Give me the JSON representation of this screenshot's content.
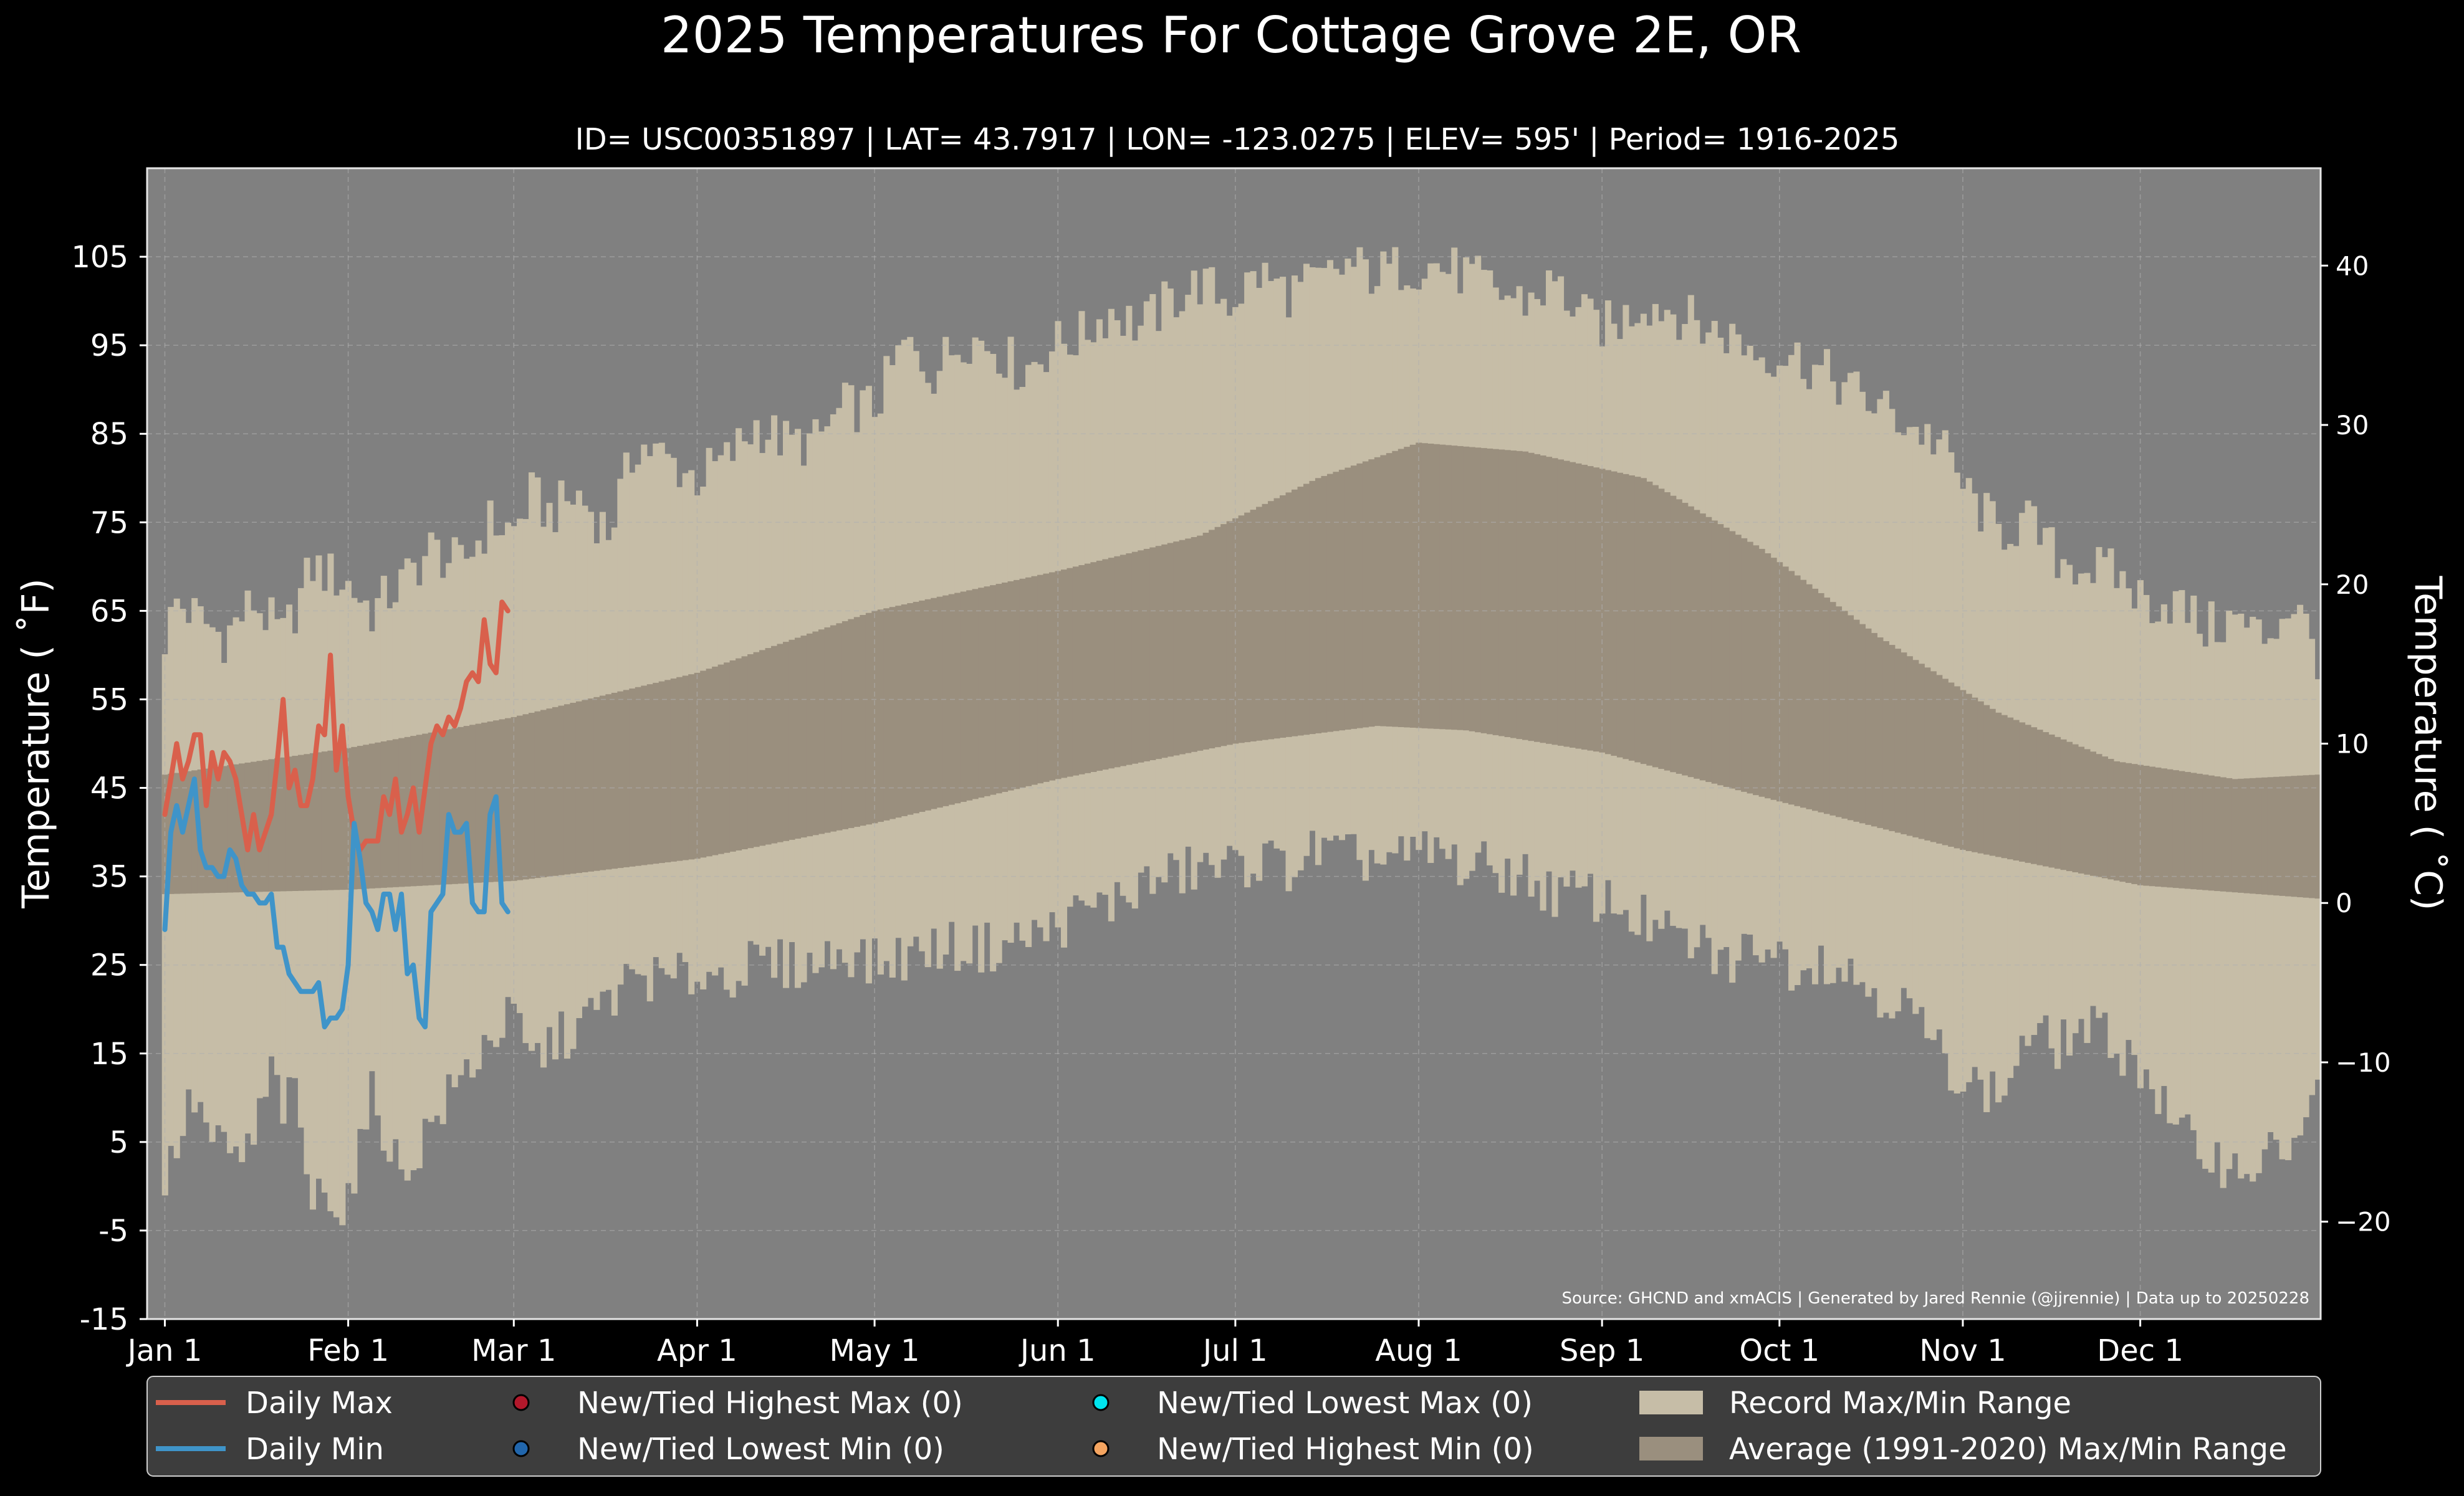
{
  "chart_data": {
    "type": "area",
    "title": "2025 Temperatures For Cottage Grove 2E, OR",
    "subtitle": "ID= USC00351897 | LAT= 43.7917 | LON= -123.0275 | ELEV= 595' | Period= 1916-2025",
    "ylabel": "Temperature ($^\\circ$F)",
    "ylabel_left": "Temperature ( ˚F)",
    "ylabel_right": "Temperature ( ˚C)",
    "source": "Source: GHCND and xmACIS | Generated by Jared Rennie (@jjrennie) | Data up to 20250228",
    "ylim": [
      -15,
      115
    ],
    "xlim_day": [
      -3,
      364.5
    ],
    "y_ticks": [
      {
        "v": -15,
        "label": "-15"
      },
      {
        "v": -5,
        "label": "-5"
      },
      {
        "v": 5,
        "label": "5"
      },
      {
        "v": 15,
        "label": "15"
      },
      {
        "v": 25,
        "label": "25"
      },
      {
        "v": 35,
        "label": "35"
      },
      {
        "v": 45,
        "label": "45"
      },
      {
        "v": 55,
        "label": "55"
      },
      {
        "v": 65,
        "label": "65"
      },
      {
        "v": 75,
        "label": "75"
      },
      {
        "v": 85,
        "label": "85"
      },
      {
        "v": 95,
        "label": "95"
      },
      {
        "v": 105,
        "label": "105"
      }
    ],
    "y_ticks_c": [
      {
        "v": -20,
        "label": "−20"
      },
      {
        "v": -10,
        "label": "−10"
      },
      {
        "v": 0,
        "label": "0"
      },
      {
        "v": 10,
        "label": "10"
      },
      {
        "v": 20,
        "label": "20"
      },
      {
        "v": 30,
        "label": "30"
      },
      {
        "v": 40,
        "label": "40"
      }
    ],
    "x_ticks": [
      {
        "day": 0,
        "label": "Jan 1"
      },
      {
        "day": 31,
        "label": "Feb 1"
      },
      {
        "day": 59,
        "label": "Mar 1"
      },
      {
        "day": 90,
        "label": "Apr 1"
      },
      {
        "day": 120,
        "label": "May 1"
      },
      {
        "day": 151,
        "label": "Jun 1"
      },
      {
        "day": 181,
        "label": "Jul 1"
      },
      {
        "day": 212,
        "label": "Aug 1"
      },
      {
        "day": 243,
        "label": "Sep 1"
      },
      {
        "day": 273,
        "label": "Oct 1"
      },
      {
        "day": 304,
        "label": "Nov 1"
      },
      {
        "day": 334,
        "label": "Dec 1"
      }
    ],
    "grid": true,
    "legend_position": "bottom",
    "legend": [
      {
        "label": "Daily Max",
        "kind": "line",
        "color": "#d9604c"
      },
      {
        "label": "Daily Min",
        "kind": "line",
        "color": "#3f94c9"
      },
      {
        "label": "New/Tied Highest Max (0)",
        "kind": "dot",
        "color": "#b2182b"
      },
      {
        "label": "New/Tied Lowest Min (0)",
        "kind": "dot",
        "color": "#2166ac"
      },
      {
        "label": "New/Tied Lowest Max (0)",
        "kind": "dot",
        "color": "#00e5ee"
      },
      {
        "label": "New/Tied Highest Min (0)",
        "kind": "dot",
        "color": "#f4a460"
      },
      {
        "label": "Record Max/Min Range",
        "kind": "patch",
        "color": "#c6bda7"
      },
      {
        "label": "Average (1991-2020) Max/Min Range",
        "kind": "patch",
        "color": "#9a8f7e"
      }
    ],
    "colors": {
      "background": "#000000",
      "plot_background": "#808080",
      "record_range": "#c6bda7",
      "normal_range": "#9a8f7e",
      "grid": "#b0b0b0",
      "legend_background": "#3d3d3d",
      "text": "#ffffff"
    },
    "normal_max_anchors": [
      [
        0,
        46.5
      ],
      [
        31,
        49.5
      ],
      [
        59,
        53
      ],
      [
        90,
        58
      ],
      [
        120,
        65
      ],
      [
        151,
        69.5
      ],
      [
        175,
        73.5
      ],
      [
        195,
        80
      ],
      [
        212,
        84
      ],
      [
        230,
        83
      ],
      [
        250,
        80
      ],
      [
        270,
        72
      ],
      [
        290,
        62
      ],
      [
        310,
        53.5
      ],
      [
        330,
        48
      ],
      [
        350,
        46
      ],
      [
        364,
        46.5
      ]
    ],
    "normal_min_anchors": [
      [
        0,
        33
      ],
      [
        31,
        33.5
      ],
      [
        59,
        34.5
      ],
      [
        90,
        37
      ],
      [
        120,
        41
      ],
      [
        151,
        46
      ],
      [
        181,
        50
      ],
      [
        205,
        52
      ],
      [
        220,
        51.5
      ],
      [
        243,
        49
      ],
      [
        270,
        44
      ],
      [
        304,
        38
      ],
      [
        334,
        34
      ],
      [
        364,
        32.5
      ]
    ],
    "record_max_anchors": [
      [
        0,
        62
      ],
      [
        2,
        66
      ],
      [
        10,
        62
      ],
      [
        15,
        66
      ],
      [
        20,
        62
      ],
      [
        25,
        70
      ],
      [
        31,
        68
      ],
      [
        35,
        65
      ],
      [
        40,
        68
      ],
      [
        45,
        72
      ],
      [
        50,
        70
      ],
      [
        55,
        75
      ],
      [
        59,
        74
      ],
      [
        62,
        78
      ],
      [
        65,
        76
      ],
      [
        70,
        78
      ],
      [
        75,
        74
      ],
      [
        80,
        84
      ],
      [
        85,
        82
      ],
      [
        90,
        80
      ],
      [
        95,
        82
      ],
      [
        100,
        86
      ],
      [
        105,
        84
      ],
      [
        110,
        84
      ],
      [
        115,
        88
      ],
      [
        120,
        88
      ],
      [
        125,
        95
      ],
      [
        130,
        92
      ],
      [
        135,
        96
      ],
      [
        140,
        95
      ],
      [
        145,
        92
      ],
      [
        150,
        95
      ],
      [
        155,
        96
      ],
      [
        160,
        99
      ],
      [
        165,
        97
      ],
      [
        170,
        100
      ],
      [
        175,
        102
      ],
      [
        180,
        100
      ],
      [
        185,
        103
      ],
      [
        190,
        101
      ],
      [
        195,
        102
      ],
      [
        200,
        104
      ],
      [
        205,
        103
      ],
      [
        210,
        104
      ],
      [
        215,
        104
      ],
      [
        220,
        103
      ],
      [
        225,
        101
      ],
      [
        230,
        100
      ],
      [
        235,
        102
      ],
      [
        240,
        98
      ],
      [
        245,
        97
      ],
      [
        250,
        100
      ],
      [
        255,
        99
      ],
      [
        260,
        97
      ],
      [
        265,
        96
      ],
      [
        270,
        94
      ],
      [
        275,
        94
      ],
      [
        280,
        92
      ],
      [
        285,
        90
      ],
      [
        290,
        88
      ],
      [
        295,
        86
      ],
      [
        300,
        84
      ],
      [
        305,
        78
      ],
      [
        310,
        74
      ],
      [
        315,
        75
      ],
      [
        320,
        71
      ],
      [
        325,
        70
      ],
      [
        330,
        69
      ],
      [
        335,
        66
      ],
      [
        340,
        66
      ],
      [
        345,
        63
      ],
      [
        350,
        64
      ],
      [
        355,
        62
      ],
      [
        360,
        66
      ],
      [
        364,
        60
      ]
    ],
    "record_min_anchors": [
      [
        0,
        0
      ],
      [
        2,
        5
      ],
      [
        5,
        10
      ],
      [
        8,
        5
      ],
      [
        12,
        3
      ],
      [
        15,
        5
      ],
      [
        18,
        13
      ],
      [
        20,
        9
      ],
      [
        22,
        10
      ],
      [
        25,
        -2
      ],
      [
        28,
        0
      ],
      [
        30,
        -3
      ],
      [
        33,
        4
      ],
      [
        35,
        10
      ],
      [
        37,
        7
      ],
      [
        40,
        1
      ],
      [
        45,
        7
      ],
      [
        50,
        12
      ],
      [
        55,
        17
      ],
      [
        59,
        19
      ],
      [
        62,
        14
      ],
      [
        65,
        16
      ],
      [
        70,
        18
      ],
      [
        75,
        21
      ],
      [
        80,
        24
      ],
      [
        85,
        23
      ],
      [
        90,
        24
      ],
      [
        95,
        24
      ],
      [
        100,
        25
      ],
      [
        105,
        25
      ],
      [
        110,
        25
      ],
      [
        115,
        27
      ],
      [
        120,
        25
      ],
      [
        125,
        26
      ],
      [
        130,
        27
      ],
      [
        135,
        27
      ],
      [
        140,
        27
      ],
      [
        145,
        28
      ],
      [
        150,
        29
      ],
      [
        155,
        31
      ],
      [
        160,
        32
      ],
      [
        165,
        34
      ],
      [
        170,
        35
      ],
      [
        175,
        36
      ],
      [
        180,
        36
      ],
      [
        185,
        37
      ],
      [
        190,
        36
      ],
      [
        195,
        38
      ],
      [
        200,
        37
      ],
      [
        205,
        37
      ],
      [
        210,
        37
      ],
      [
        215,
        38
      ],
      [
        220,
        36
      ],
      [
        225,
        36
      ],
      [
        230,
        35
      ],
      [
        235,
        33
      ],
      [
        240,
        33
      ],
      [
        245,
        32
      ],
      [
        250,
        30
      ],
      [
        255,
        28
      ],
      [
        260,
        27
      ],
      [
        265,
        25
      ],
      [
        270,
        28
      ],
      [
        275,
        25
      ],
      [
        280,
        26
      ],
      [
        285,
        24
      ],
      [
        290,
        22
      ],
      [
        295,
        20
      ],
      [
        300,
        15
      ],
      [
        305,
        12
      ],
      [
        310,
        10
      ],
      [
        315,
        17
      ],
      [
        320,
        16
      ],
      [
        325,
        18
      ],
      [
        330,
        16
      ],
      [
        335,
        13
      ],
      [
        340,
        6
      ],
      [
        345,
        4
      ],
      [
        350,
        2
      ],
      [
        355,
        3
      ],
      [
        360,
        5
      ],
      [
        364,
        10
      ]
    ],
    "series": [
      {
        "name": "Daily Max",
        "color": "#d9604c",
        "day_start": 0,
        "values": [
          42,
          46,
          50,
          46,
          48,
          51,
          51,
          43,
          49,
          46,
          49,
          48,
          46,
          42,
          38,
          42,
          38,
          40,
          42,
          48,
          55,
          45,
          47,
          43,
          43,
          46,
          52,
          51,
          60,
          47,
          52,
          44,
          40,
          38,
          39,
          39,
          39,
          44,
          42,
          46,
          40,
          42,
          45,
          40,
          45,
          50,
          52,
          51,
          53,
          52,
          54,
          57,
          58,
          57,
          64,
          59,
          58,
          66,
          65
        ]
      },
      {
        "name": "Daily Min",
        "color": "#3f94c9",
        "day_start": 0,
        "values": [
          29,
          40,
          43,
          40,
          43,
          46,
          38,
          36,
          36,
          35,
          35,
          38,
          37,
          34,
          33,
          33,
          32,
          32,
          33,
          27,
          27,
          24,
          23,
          22,
          22,
          22,
          23,
          18,
          19,
          19,
          20,
          25,
          41,
          37,
          32,
          31,
          29,
          33,
          33,
          29,
          33,
          24,
          25,
          19,
          18,
          31,
          32,
          33,
          42,
          40,
          40,
          41,
          32,
          31,
          31,
          42,
          44,
          32,
          31
        ]
      }
    ]
  }
}
